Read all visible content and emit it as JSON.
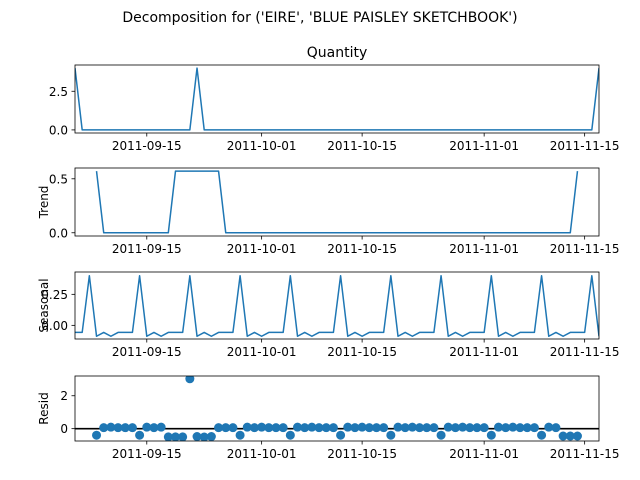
{
  "suptitle": "Decomposition for ('EIRE', 'BLUE PAISLEY SKETCHBOOK')",
  "chart_data": {
    "type": "line",
    "x_start": "2011-09-05",
    "x_end": "2011-11-17",
    "x_ticks": [
      "2011-09-15",
      "2011-10-01",
      "2011-10-15",
      "2011-11-01",
      "2011-11-15"
    ],
    "panels": [
      {
        "key": "observed",
        "title": "Quantity",
        "ylabel": "",
        "style": "line",
        "ylim": [
          -0.2,
          4.2
        ],
        "yticks": [
          "0.0",
          "2.5"
        ],
        "ytick_values": [
          0,
          2.5
        ],
        "x": [
          "2011-09-05",
          "2011-09-06",
          "2011-09-21",
          "2011-09-22",
          "2011-09-23",
          "2011-11-16",
          "2011-11-17"
        ],
        "values": [
          4,
          0,
          0,
          4,
          0,
          0,
          4
        ]
      },
      {
        "key": "trend",
        "title": "",
        "ylabel": "Trend",
        "style": "line",
        "ylim": [
          -0.03,
          0.6
        ],
        "yticks": [
          "0.0",
          "0.5"
        ],
        "ytick_values": [
          0,
          0.5
        ],
        "x": [
          "2011-09-08",
          "2011-09-09",
          "2011-09-18",
          "2011-09-19",
          "2011-09-25",
          "2011-09-26",
          "2011-11-13",
          "2011-11-14"
        ],
        "values": [
          0.571,
          0,
          0,
          0.571,
          0.571,
          0,
          0,
          0.571
        ]
      },
      {
        "key": "seasonal",
        "title": "",
        "ylabel": "Seasonal",
        "style": "line",
        "ylim": [
          -0.11,
          0.43
        ],
        "yticks": [
          "0.00",
          "0.25"
        ],
        "ytick_values": [
          0,
          0.25
        ],
        "x": [
          "2011-09-05",
          "2011-09-06",
          "2011-09-07",
          "2011-09-08",
          "2011-09-09",
          "2011-09-10",
          "2011-09-11",
          "2011-09-12",
          "2011-09-13",
          "2011-09-14",
          "2011-09-15",
          "2011-09-16",
          "2011-09-17",
          "2011-09-18",
          "2011-09-19",
          "2011-09-20",
          "2011-09-21",
          "2011-09-22",
          "2011-09-23",
          "2011-09-24",
          "2011-09-25",
          "2011-09-26",
          "2011-09-27",
          "2011-09-28",
          "2011-09-29",
          "2011-09-30",
          "2011-10-01",
          "2011-10-02",
          "2011-10-03",
          "2011-10-04",
          "2011-10-05",
          "2011-10-06",
          "2011-10-07",
          "2011-10-08",
          "2011-10-09",
          "2011-10-10",
          "2011-10-11",
          "2011-10-12",
          "2011-10-13",
          "2011-10-14",
          "2011-10-15",
          "2011-10-16",
          "2011-10-17",
          "2011-10-18",
          "2011-10-19",
          "2011-10-20",
          "2011-10-21",
          "2011-10-22",
          "2011-10-23",
          "2011-10-24",
          "2011-10-25",
          "2011-10-26",
          "2011-10-27",
          "2011-10-28",
          "2011-10-29",
          "2011-10-30",
          "2011-10-31",
          "2011-11-01",
          "2011-11-02",
          "2011-11-03",
          "2011-11-04",
          "2011-11-05",
          "2011-11-06",
          "2011-11-07",
          "2011-11-08",
          "2011-11-09",
          "2011-11-10",
          "2011-11-11",
          "2011-11-12",
          "2011-11-13",
          "2011-11-14",
          "2011-11-15",
          "2011-11-16",
          "2011-11-17"
        ],
        "values": [
          -0.057,
          -0.057,
          0.4,
          -0.088,
          -0.057,
          -0.088,
          -0.057,
          -0.057,
          -0.057,
          0.4,
          -0.088,
          -0.057,
          -0.088,
          -0.057,
          -0.057,
          -0.057,
          0.4,
          -0.088,
          -0.057,
          -0.088,
          -0.057,
          -0.057,
          -0.057,
          0.4,
          -0.088,
          -0.057,
          -0.088,
          -0.057,
          -0.057,
          -0.057,
          0.4,
          -0.088,
          -0.057,
          -0.088,
          -0.057,
          -0.057,
          -0.057,
          0.4,
          -0.088,
          -0.057,
          -0.088,
          -0.057,
          -0.057,
          -0.057,
          0.4,
          -0.088,
          -0.057,
          -0.088,
          -0.057,
          -0.057,
          -0.057,
          0.4,
          -0.088,
          -0.057,
          -0.088,
          -0.057,
          -0.057,
          -0.057,
          0.4,
          -0.088,
          -0.057,
          -0.088,
          -0.057,
          -0.057,
          -0.057,
          0.4,
          -0.088,
          -0.057,
          -0.088,
          -0.057,
          -0.057,
          -0.057,
          0.4,
          -0.088
        ]
      },
      {
        "key": "resid",
        "title": "",
        "ylabel": "Resid",
        "style": "scatter",
        "baseline": 0,
        "ylim": [
          -0.75,
          3.2
        ],
        "yticks": [
          "0",
          "2"
        ],
        "ytick_values": [
          0,
          2
        ],
        "x": [
          "2011-09-08",
          "2011-09-09",
          "2011-09-10",
          "2011-09-11",
          "2011-09-12",
          "2011-09-13",
          "2011-09-14",
          "2011-09-15",
          "2011-09-16",
          "2011-09-17",
          "2011-09-18",
          "2011-09-19",
          "2011-09-20",
          "2011-09-21",
          "2011-09-22",
          "2011-09-23",
          "2011-09-24",
          "2011-09-25",
          "2011-09-26",
          "2011-09-27",
          "2011-09-28",
          "2011-09-29",
          "2011-09-30",
          "2011-10-01",
          "2011-10-02",
          "2011-10-03",
          "2011-10-04",
          "2011-10-05",
          "2011-10-06",
          "2011-10-07",
          "2011-10-08",
          "2011-10-09",
          "2011-10-10",
          "2011-10-11",
          "2011-10-12",
          "2011-10-13",
          "2011-10-14",
          "2011-10-15",
          "2011-10-16",
          "2011-10-17",
          "2011-10-18",
          "2011-10-19",
          "2011-10-20",
          "2011-10-21",
          "2011-10-22",
          "2011-10-23",
          "2011-10-24",
          "2011-10-25",
          "2011-10-26",
          "2011-10-27",
          "2011-10-28",
          "2011-10-29",
          "2011-10-30",
          "2011-10-31",
          "2011-11-01",
          "2011-11-02",
          "2011-11-03",
          "2011-11-04",
          "2011-11-05",
          "2011-11-06",
          "2011-11-07",
          "2011-11-08",
          "2011-11-09",
          "2011-11-10",
          "2011-11-11",
          "2011-11-12",
          "2011-11-13",
          "2011-11-14"
        ],
        "values": [
          -0.4,
          0.06,
          0.09,
          0.06,
          0.06,
          0.06,
          -0.4,
          0.09,
          0.06,
          0.09,
          -0.5,
          -0.5,
          -0.5,
          3.03,
          -0.48,
          -0.51,
          -0.48,
          0.06,
          0.06,
          0.06,
          -0.4,
          0.09,
          0.06,
          0.09,
          0.06,
          0.06,
          0.06,
          -0.4,
          0.09,
          0.06,
          0.09,
          0.06,
          0.06,
          0.06,
          -0.4,
          0.09,
          0.06,
          0.09,
          0.06,
          0.06,
          0.06,
          -0.4,
          0.09,
          0.06,
          0.09,
          0.06,
          0.06,
          0.06,
          -0.4,
          0.09,
          0.06,
          0.09,
          0.06,
          0.06,
          0.06,
          -0.4,
          0.09,
          0.06,
          0.09,
          0.06,
          0.06,
          0.06,
          -0.4,
          0.09,
          0.06,
          -0.45,
          -0.45,
          -0.45
        ]
      }
    ]
  }
}
